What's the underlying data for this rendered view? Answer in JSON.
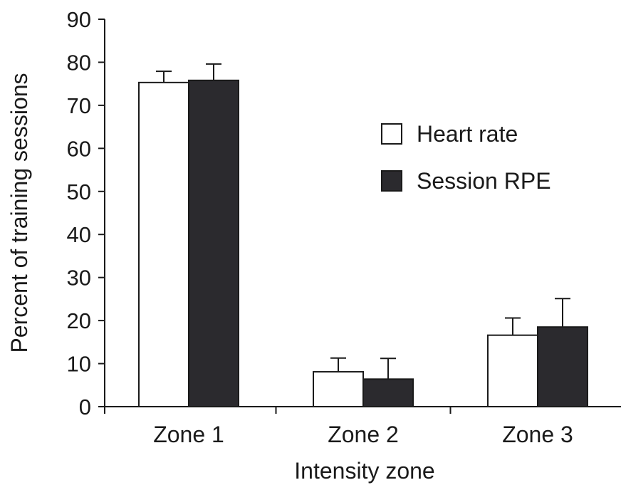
{
  "chart_data": {
    "type": "bar",
    "categories": [
      "Zone 1",
      "Zone 2",
      "Zone 3"
    ],
    "series": [
      {
        "name": "Heart rate",
        "values": [
          75.3,
          8.1,
          16.6
        ],
        "error": [
          2.6,
          3.2,
          4.0
        ],
        "fill": "#ffffff",
        "stroke": "#1a1a1a"
      },
      {
        "name": "Session RPE",
        "values": [
          75.8,
          6.4,
          18.5
        ],
        "error": [
          3.8,
          4.8,
          6.6
        ],
        "fill": "#2b2a2e",
        "stroke": "#1a1a1a"
      }
    ],
    "title": "",
    "xlabel": "Intensity zone",
    "ylabel": "Percent of training sessions",
    "ylim": [
      0,
      90
    ],
    "yticks": [
      "0",
      "10",
      "20",
      "30",
      "40",
      "50",
      "60",
      "70",
      "80",
      "90"
    ],
    "grid": false,
    "legend_position": "right"
  }
}
